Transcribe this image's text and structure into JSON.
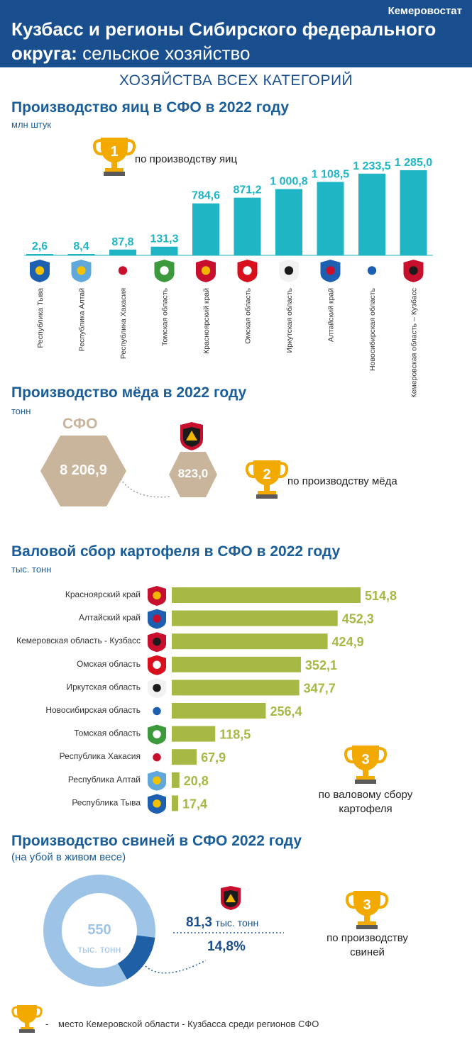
{
  "header": {
    "org": "Кемеровостат",
    "title_bold": "Кузбасс и регионы Сибирского федерального округа:",
    "title_normal": "сельское хозяйство"
  },
  "subtitle": "ХОЗЯЙСТВА ВСЕХ КАТЕГОРИЙ",
  "eggs": {
    "title": "Производство яиц в СФО в 2022 году",
    "unit": "млн штук",
    "award_rank": "1",
    "award_text": "по производству яиц"
  },
  "honey": {
    "title": "Производство мёда в 2022 году",
    "unit": "тонн",
    "sfo_label": "СФО",
    "sfo_value": "8 206,9",
    "kuzbass_value": "823,0",
    "award_rank": "2",
    "award_text": "по производству мёда"
  },
  "potato": {
    "title": "Валовой сбор картофеля в СФО в 2022 году",
    "unit": "тыс. тонн",
    "award_rank": "3",
    "award_text_1": "по валовому сбору",
    "award_text_2": "картофеля"
  },
  "pigs": {
    "title": "Производство свиней в СФО 2022 году",
    "subtitle": "(на убой в живом весе)",
    "total_value": "550",
    "total_unit": "тыс. тонн",
    "kuzbass_value": "81,3",
    "kuzbass_unit": "тыс. тонн",
    "kuzbass_share": "14,8%",
    "award_rank": "3",
    "award_text_1": "по производству",
    "award_text_2": "свиней"
  },
  "legend": {
    "dash": "-",
    "text": "место Кемеровской области - Кузбасса среди регионов СФО"
  },
  "colors": {
    "header_bg": "#1a4f8f",
    "title_blue": "#1a5d99",
    "egg_bar": "#1fb5c5",
    "potato_bar": "#a7b944",
    "honey_hex": "#c9b49c",
    "donut_light": "#9dc3e6",
    "donut_dark": "#1f5fa6",
    "trophy": "#f2a900"
  },
  "chart_data": [
    {
      "type": "bar",
      "title": "Производство яиц в СФО в 2022 году",
      "ylabel": "млн штук",
      "categories": [
        "Республика Тыва",
        "Республика Алтай",
        "Республика Хакасия",
        "Томская область",
        "Красноярский край",
        "Омская область",
        "Иркутская область",
        "Алтайский край",
        "Новосибирская область",
        "Кемеровская область – Кузбасс"
      ],
      "values": [
        2.6,
        8.4,
        87.8,
        131.3,
        784.6,
        871.2,
        1000.8,
        1108.5,
        1233.5,
        1285.0
      ],
      "labels": [
        "2,6",
        "8,4",
        "87,8",
        "131,3",
        "784,6",
        "871,2",
        "1 000,8",
        "1 108,5",
        "1 233,5",
        "1 285,0"
      ],
      "ylim": [
        0,
        1285
      ]
    },
    {
      "type": "bar",
      "orientation": "horizontal",
      "title": "Валовой сбор картофеля в СФО в 2022 году",
      "xlabel": "тыс. тонн",
      "categories": [
        "Красноярский край",
        "Алтайский край",
        "Кемеровская область - Кузбасс",
        "Омская область",
        "Иркутская область",
        "Новосибирская область",
        "Томская область",
        "Республика Хакасия",
        "Республика Алтай",
        "Республика Тыва"
      ],
      "values": [
        514.8,
        452.3,
        424.9,
        352.1,
        347.7,
        256.4,
        118.5,
        67.9,
        20.8,
        17.4
      ],
      "labels": [
        "514,8",
        "452,3",
        "424,9",
        "352,1",
        "347,7",
        "256,4",
        "118,5",
        "67,9",
        "20,8",
        "17,4"
      ],
      "xlim": [
        0,
        514.8
      ]
    },
    {
      "type": "pie",
      "title": "Производство свиней в СФО 2022 году",
      "total": 550,
      "slices": [
        {
          "name": "Кемеровская область - Кузбасс",
          "value": 81.3,
          "share": 14.8
        },
        {
          "name": "",
          "value": 468.7
        }
      ]
    }
  ]
}
